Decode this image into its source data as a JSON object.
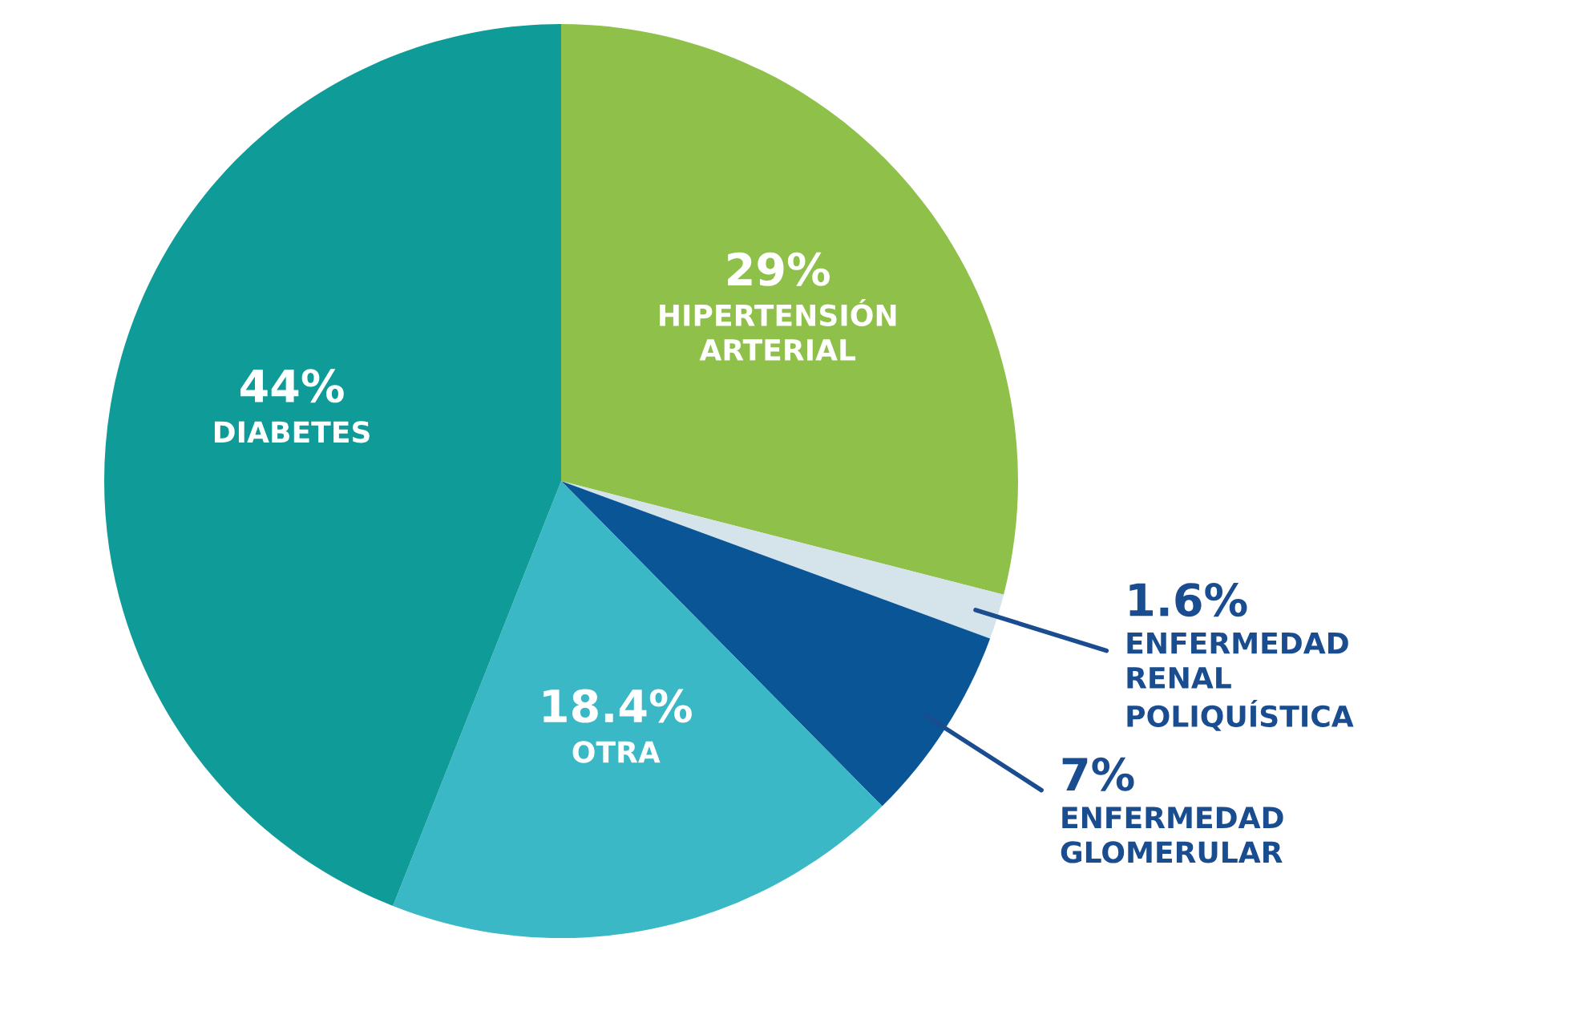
{
  "chart_data": {
    "type": "pie",
    "categories": [
      "HIPERTENSIÓN\nARTERIAL",
      "ENFERMEDAD\nRENAL\nPOLIQUÍSTICA",
      "ENFERMEDAD\nGLOMERULAR",
      "OTRA",
      "DIABETES"
    ],
    "values": [
      29,
      1.6,
      7,
      18.4,
      44
    ],
    "value_labels": [
      "29%",
      "1.6%",
      "7%",
      "18.4%",
      "44%"
    ],
    "colors": [
      "#8fc04a",
      "#d5e3ea",
      "#0a5596",
      "#3bb8c6",
      "#0f9c98"
    ],
    "legend": false
  }
}
